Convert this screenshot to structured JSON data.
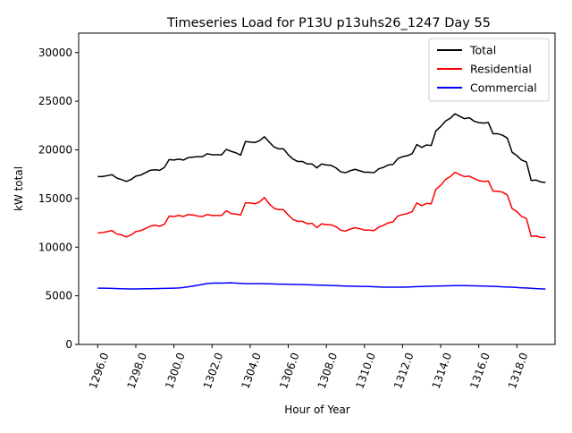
{
  "colors": {
    "total": "#000000",
    "residential": "#ff0000",
    "commercial": "#0000ff"
  },
  "chart_data": {
    "type": "line",
    "title": "Timeseries Load for P13U p13uhs26_1247  Day 55",
    "xlabel": "Hour of Year",
    "ylabel": "kW total",
    "xlim": [
      1295.0,
      1320.0
    ],
    "ylim": [
      0,
      32000
    ],
    "xticks": [
      1296,
      1298,
      1300,
      1302,
      1304,
      1306,
      1308,
      1310,
      1312,
      1314,
      1316,
      1318
    ],
    "xtick_labels": [
      "1296.0",
      "1298.0",
      "1300.0",
      "1302.0",
      "1304.0",
      "1306.0",
      "1308.0",
      "1310.0",
      "1312.0",
      "1314.0",
      "1316.0",
      "1318.0"
    ],
    "yticks": [
      0,
      5000,
      10000,
      15000,
      20000,
      25000,
      30000
    ],
    "ytick_labels": [
      "0",
      "5000",
      "10000",
      "15000",
      "20000",
      "25000",
      "30000"
    ],
    "grid": false,
    "legend_position": "top-right",
    "x_start": 1296.0,
    "x_step": 0.25,
    "series": [
      {
        "name": "Total",
        "color_key": "total",
        "values": [
          17250,
          17250,
          17350,
          17450,
          17100,
          16950,
          16750,
          16950,
          17300,
          17400,
          17650,
          17900,
          17950,
          17900,
          18200,
          19000,
          18950,
          19050,
          18950,
          19200,
          19250,
          19300,
          19300,
          19600,
          19500,
          19500,
          19500,
          20050,
          19850,
          19700,
          19450,
          20850,
          20800,
          20750,
          20950,
          21350,
          20800,
          20300,
          20100,
          20100,
          19500,
          19050,
          18800,
          18800,
          18550,
          18550,
          18150,
          18550,
          18450,
          18400,
          18150,
          17750,
          17650,
          17850,
          18000,
          17850,
          17700,
          17700,
          17650,
          18050,
          18200,
          18450,
          18500,
          19100,
          19300,
          19400,
          19600,
          20550,
          20250,
          20500,
          20450,
          21950,
          22400,
          22950,
          23250,
          23700,
          23450,
          23200,
          23300,
          22950,
          22800,
          22750,
          22800,
          21650,
          21650,
          21500,
          21200,
          19750,
          19400,
          18950,
          18750,
          16850,
          16900,
          16700,
          16650
        ]
      },
      {
        "name": "Residential",
        "color_key": "residential",
        "values": [
          11450,
          11500,
          11600,
          11700,
          11350,
          11250,
          11050,
          11250,
          11600,
          11700,
          11900,
          12150,
          12250,
          12150,
          12350,
          13200,
          13150,
          13250,
          13150,
          13350,
          13300,
          13200,
          13150,
          13350,
          13250,
          13250,
          13250,
          13750,
          13450,
          13400,
          13300,
          14550,
          14550,
          14450,
          14650,
          15100,
          14450,
          14000,
          13850,
          13850,
          13300,
          12850,
          12650,
          12650,
          12400,
          12450,
          12000,
          12400,
          12300,
          12300,
          12100,
          11750,
          11650,
          11850,
          12000,
          11900,
          11750,
          11750,
          11700,
          12050,
          12250,
          12500,
          12600,
          13200,
          13350,
          13450,
          13650,
          14550,
          14250,
          14500,
          14450,
          15950,
          16350,
          16950,
          17250,
          17700,
          17450,
          17250,
          17300,
          17050,
          16850,
          16750,
          16800,
          15750,
          15750,
          15650,
          15350,
          13950,
          13650,
          13150,
          12950,
          11100,
          11150,
          11000,
          11000
        ]
      },
      {
        "name": "Commercial",
        "color_key": "commercial",
        "values": [
          5780,
          5780,
          5770,
          5760,
          5740,
          5720,
          5710,
          5700,
          5700,
          5710,
          5720,
          5730,
          5740,
          5750,
          5760,
          5770,
          5780,
          5800,
          5850,
          5920,
          6000,
          6080,
          6170,
          6250,
          6300,
          6310,
          6300,
          6320,
          6330,
          6300,
          6270,
          6250,
          6240,
          6250,
          6250,
          6240,
          6230,
          6220,
          6200,
          6190,
          6180,
          6170,
          6160,
          6150,
          6140,
          6120,
          6100,
          6090,
          6080,
          6060,
          6040,
          6020,
          6000,
          5990,
          5980,
          5970,
          5960,
          5950,
          5930,
          5910,
          5890,
          5880,
          5880,
          5880,
          5890,
          5900,
          5920,
          5940,
          5950,
          5970,
          5990,
          6000,
          6010,
          6020,
          6030,
          6040,
          6040,
          6040,
          6030,
          6020,
          6010,
          6000,
          5990,
          5970,
          5950,
          5920,
          5900,
          5880,
          5850,
          5820,
          5800,
          5770,
          5740,
          5710,
          5690
        ]
      }
    ]
  }
}
